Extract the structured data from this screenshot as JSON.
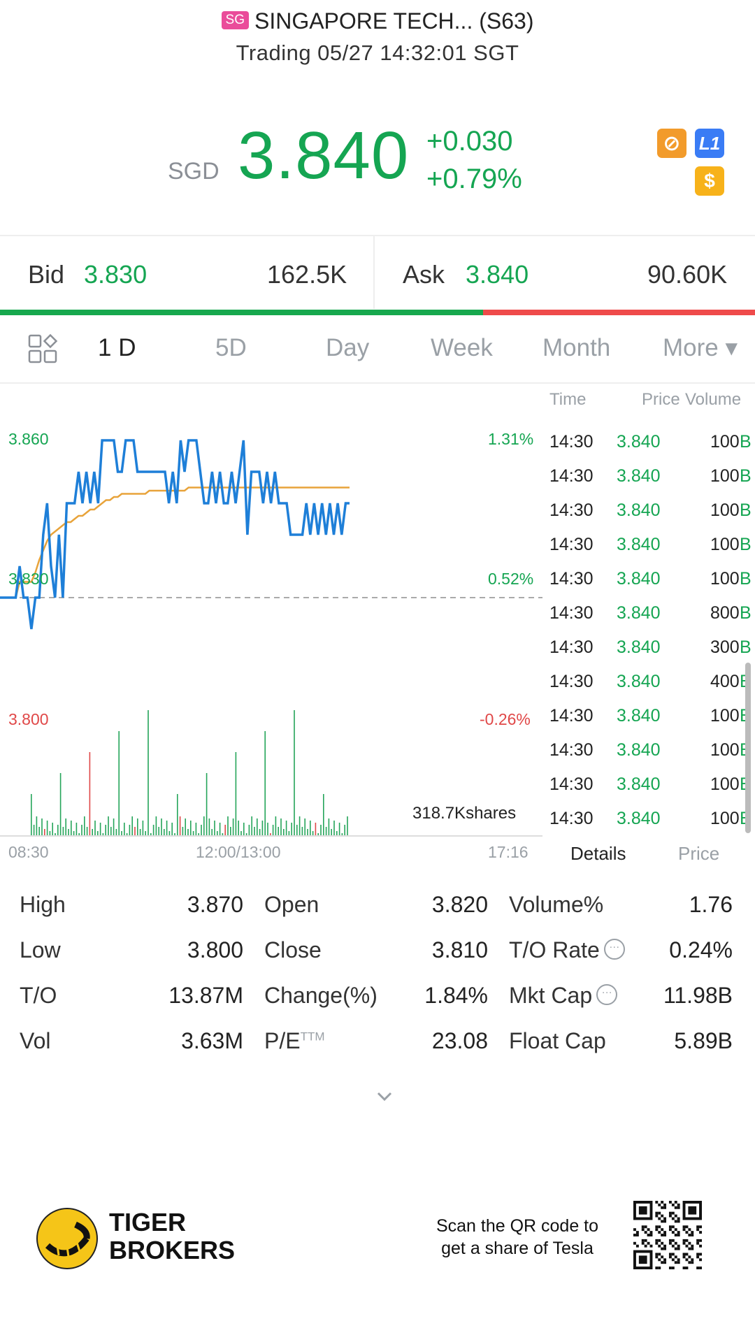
{
  "header": {
    "badge": "SG",
    "title": "SINGAPORE TECH... (S63)",
    "status": "Trading 05/27 14:32:01 SGT"
  },
  "quote": {
    "currency": "SGD",
    "price": "3.840",
    "change": "+0.030",
    "change_pct": "+0.79%",
    "icons": [
      "no-trading-icon",
      "level1-icon",
      "dollar-icon"
    ],
    "colors": {
      "up": "#15a552",
      "down": "#e04848",
      "accent_blue": "#1e7fd8",
      "avg_line": "#e8a33a"
    }
  },
  "orderbook": {
    "bid_label": "Bid",
    "bid_price": "3.830",
    "bid_size": "162.5K",
    "ask_label": "Ask",
    "ask_price": "3.840",
    "ask_size": "90.60K",
    "bid_ratio": 0.64
  },
  "tabs": {
    "items": [
      "1 D",
      "5D",
      "Day",
      "Week",
      "Month",
      "More ▾"
    ],
    "active": 0
  },
  "chart": {
    "y_left": [
      "3.860",
      "3.830",
      "3.800"
    ],
    "y_right": [
      "1.31%",
      "0.52%",
      "-0.26%"
    ],
    "x_ticks": [
      "08:30",
      "12:00/13:00",
      "17:16"
    ],
    "volume_label": "318.7Kshares"
  },
  "chart_data": {
    "type": "line",
    "ylim": [
      3.8,
      3.86
    ],
    "prev_close": 3.81,
    "series": [
      {
        "values": [
          3.81,
          3.81,
          3.81,
          3.81,
          3.81,
          3.82,
          3.81,
          3.81,
          3.8,
          3.81,
          3.81,
          3.83,
          3.84,
          3.82,
          3.81,
          3.83,
          3.81,
          3.84,
          3.84,
          3.84,
          3.85,
          3.84,
          3.85,
          3.84,
          3.85,
          3.84,
          3.86,
          3.86,
          3.86,
          3.86,
          3.85,
          3.85,
          3.86,
          3.86,
          3.86,
          3.85,
          3.85,
          3.85,
          3.85,
          3.85,
          3.85,
          3.85,
          3.85,
          3.84,
          3.85,
          3.84,
          3.86,
          3.85,
          3.86,
          3.86,
          3.86,
          3.85,
          3.84,
          3.84,
          3.85,
          3.84,
          3.85,
          3.84,
          3.84,
          3.85,
          3.84,
          3.85,
          3.86,
          3.83,
          3.85,
          3.85,
          3.85,
          3.84,
          3.85,
          3.84,
          3.85,
          3.84,
          3.84,
          3.84,
          3.83,
          3.83,
          3.83,
          3.83,
          3.84,
          3.83,
          3.84,
          3.83,
          3.84,
          3.83,
          3.84,
          3.83,
          3.84,
          3.83,
          3.84,
          3.84
        ]
      },
      {
        "values": [
          3.81,
          3.81,
          3.81,
          3.81,
          3.81,
          3.815,
          3.815,
          3.815,
          3.815,
          3.818,
          3.822,
          3.825,
          3.828,
          3.83,
          3.831,
          3.832,
          3.833,
          3.834,
          3.834,
          3.835,
          3.836,
          3.836,
          3.837,
          3.838,
          3.838,
          3.839,
          3.84,
          3.841,
          3.841,
          3.842,
          3.842,
          3.843,
          3.843,
          3.843,
          3.843,
          3.843,
          3.843,
          3.843,
          3.844,
          3.844,
          3.844,
          3.844,
          3.844,
          3.844,
          3.844,
          3.844,
          3.844,
          3.844,
          3.845,
          3.845,
          3.845,
          3.845,
          3.845,
          3.845,
          3.845,
          3.845,
          3.845,
          3.845,
          3.845,
          3.845,
          3.845,
          3.845,
          3.845,
          3.845,
          3.845,
          3.845,
          3.845,
          3.845,
          3.845,
          3.845,
          3.845,
          3.845,
          3.845,
          3.845,
          3.845,
          3.845,
          3.845,
          3.845,
          3.845,
          3.845,
          3.845,
          3.845,
          3.845,
          3.845,
          3.845,
          3.845,
          3.845,
          3.845,
          3.845,
          3.845
        ]
      }
    ]
  },
  "ticks": {
    "headers": [
      "Time",
      "Price",
      "Volume"
    ],
    "rows": [
      {
        "time": "14:30",
        "price": "3.840",
        "vol": "100",
        "side": "B"
      },
      {
        "time": "14:30",
        "price": "3.840",
        "vol": "100",
        "side": "B"
      },
      {
        "time": "14:30",
        "price": "3.840",
        "vol": "100",
        "side": "B"
      },
      {
        "time": "14:30",
        "price": "3.840",
        "vol": "100",
        "side": "B"
      },
      {
        "time": "14:30",
        "price": "3.840",
        "vol": "100",
        "side": "B"
      },
      {
        "time": "14:30",
        "price": "3.840",
        "vol": "800",
        "side": "B"
      },
      {
        "time": "14:30",
        "price": "3.840",
        "vol": "300",
        "side": "B"
      },
      {
        "time": "14:30",
        "price": "3.840",
        "vol": "400",
        "side": "B"
      },
      {
        "time": "14:30",
        "price": "3.840",
        "vol": "100",
        "side": "B"
      },
      {
        "time": "14:30",
        "price": "3.840",
        "vol": "100",
        "side": "B"
      },
      {
        "time": "14:30",
        "price": "3.840",
        "vol": "100",
        "side": "B"
      },
      {
        "time": "14:30",
        "price": "3.840",
        "vol": "100",
        "side": "B"
      }
    ],
    "tab_details": "Details",
    "tab_price": "Price"
  },
  "stats": {
    "high_label": "High",
    "high": "3.870",
    "low_label": "Low",
    "low": "3.800",
    "to_label": "T/O",
    "to": "13.87M",
    "vol_label": "Vol",
    "vol": "3.63M",
    "open_label": "Open",
    "open": "3.820",
    "close_label": "Close",
    "close": "3.810",
    "chgpct_label": "Change(%)",
    "chgpct": "1.84%",
    "pe_label": "P/E",
    "pe_sup": "TTM",
    "pe": "23.08",
    "volpct_label": "Volume%",
    "volpct": "1.76",
    "torate_label": "T/O Rate",
    "torate": "0.24%",
    "mktcap_label": "Mkt Cap",
    "mktcap": "11.98B",
    "floatcap_label": "Float Cap",
    "floatcap": "5.89B"
  },
  "footer": {
    "brand_line1": "TIGER",
    "brand_line2": "BROKERS",
    "promo_line1": "Scan the QR code to",
    "promo_line2": "get a share of Tesla"
  }
}
